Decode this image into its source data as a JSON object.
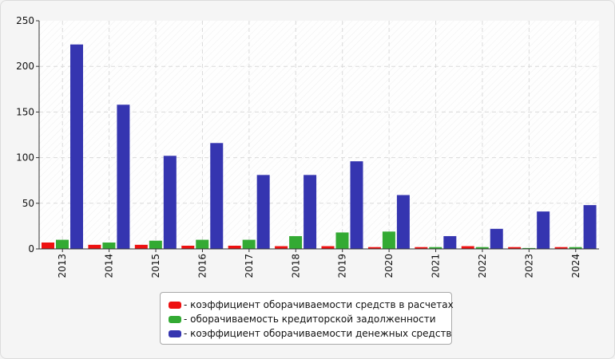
{
  "chart_data": {
    "type": "bar",
    "categories": [
      "2013",
      "2014",
      "2015",
      "2016",
      "2017",
      "2018",
      "2019",
      "2020",
      "2021",
      "2022",
      "2023",
      "2024"
    ],
    "series": [
      {
        "name": "коэффициент оборачиваемости средств в расчетах",
        "color": "#ee1111",
        "values": [
          7,
          4.5,
          4.5,
          3.5,
          3.5,
          3,
          3,
          2,
          2,
          3,
          2,
          2
        ]
      },
      {
        "name": "оборачиваемость кредиторской задолженности",
        "color": "#33aa33",
        "values": [
          10,
          7,
          9,
          10,
          10,
          14,
          18,
          19,
          2,
          2,
          1,
          2
        ]
      },
      {
        "name": "коэффициент оборачиваемости денежных средств",
        "color": "#3535b0",
        "values": [
          224,
          158,
          102,
          116,
          81,
          81,
          96,
          59,
          14,
          22,
          41,
          48
        ]
      }
    ],
    "ylim": [
      0,
      250
    ],
    "yticks": [
      "0",
      "50",
      "100",
      "150",
      "200",
      "250"
    ],
    "legend_position": "bottom",
    "grid": true
  }
}
